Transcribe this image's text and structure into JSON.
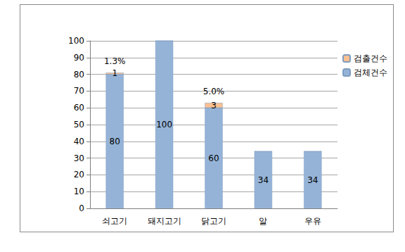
{
  "chart_data": {
    "type": "bar",
    "categories": [
      "쇠고기",
      "돼지고기",
      "닭고기",
      "알",
      "우유"
    ],
    "series": [
      {
        "name": "검체건수",
        "color": "#95b3d7",
        "values": [
          80,
          100,
          60,
          34,
          34
        ]
      },
      {
        "name": "검출건수",
        "color": "#fac090",
        "values": [
          1,
          0,
          3,
          0,
          0
        ]
      }
    ],
    "stacked": true,
    "data_labels": true,
    "legend": "upper right",
    "ylim": [
      0,
      100
    ],
    "yticks": [
      0,
      10,
      20,
      30,
      40,
      50,
      60,
      70,
      80,
      90,
      100
    ],
    "grid": true,
    "annotations": [
      {
        "category": "쇠고기",
        "text": "1.3%"
      },
      {
        "category": "닭고기",
        "text": "5.0%"
      }
    ]
  }
}
